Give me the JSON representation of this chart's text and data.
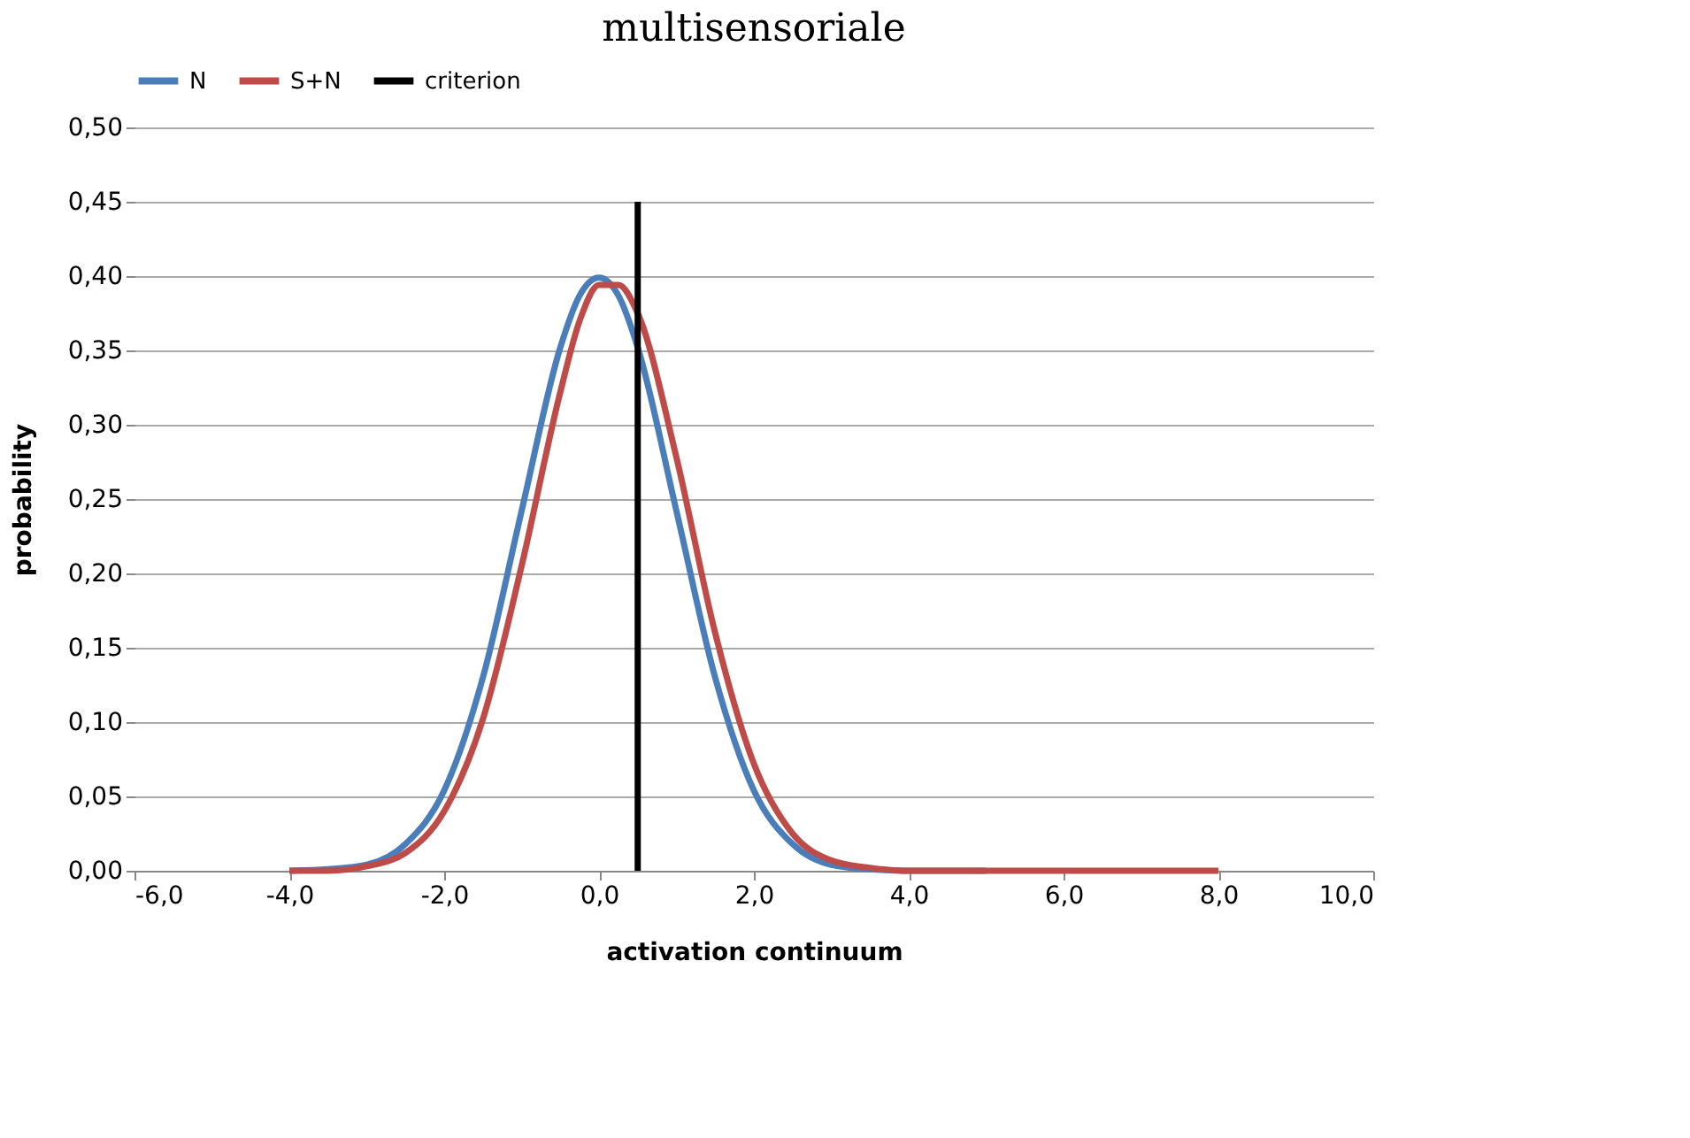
{
  "chart_data": {
    "type": "line",
    "title": "multisensoriale",
    "xlabel": "activation continuum",
    "ylabel": "probability",
    "x": [
      -4,
      -3.5,
      -3,
      -2.5,
      -2,
      -1.5,
      -1,
      -0.5,
      -0.25,
      0,
      0.25,
      0.5,
      1,
      1.5,
      2,
      2.5,
      3,
      3.5,
      4,
      5,
      6,
      7,
      8
    ],
    "series": [
      {
        "name": "N",
        "color": "#4a7ebb",
        "values": [
          0.0,
          0.001,
          0.004,
          0.018,
          0.054,
          0.13,
          0.242,
          0.352,
          0.387,
          0.399,
          0.387,
          0.352,
          0.242,
          0.13,
          0.054,
          0.018,
          0.004,
          0.001,
          0.0,
          0.0,
          null,
          null,
          null
        ]
      },
      {
        "name": "S+N",
        "color": "#be4b48",
        "values": [
          0.0,
          0.0,
          0.003,
          0.012,
          0.04,
          0.102,
          0.205,
          0.322,
          0.37,
          0.394,
          0.394,
          0.375,
          0.278,
          0.16,
          0.072,
          0.025,
          0.007,
          0.002,
          0.0,
          0.0,
          0.0,
          0.0,
          0.0
        ]
      },
      {
        "name": "criterion",
        "color": "#000000",
        "type": "line",
        "x": [
          0.5,
          0.5
        ],
        "values": [
          0,
          0.45
        ]
      }
    ],
    "xlim": [
      -6,
      10
    ],
    "ylim": [
      0,
      0.5
    ],
    "xticks": [
      {
        "value": -6,
        "label": "-6,0"
      },
      {
        "value": -4,
        "label": "-4,0"
      },
      {
        "value": -2,
        "label": "-2,0"
      },
      {
        "value": 0,
        "label": "0,0"
      },
      {
        "value": 2,
        "label": "2,0"
      },
      {
        "value": 4,
        "label": "4,0"
      },
      {
        "value": 6,
        "label": "6,0"
      },
      {
        "value": 8,
        "label": "8,0"
      },
      {
        "value": 10,
        "label": "10,0"
      }
    ],
    "yticks": [
      {
        "value": 0,
        "label": "0,00"
      },
      {
        "value": 0.05,
        "label": "0,05"
      },
      {
        "value": 0.1,
        "label": "0,10"
      },
      {
        "value": 0.15,
        "label": "0,15"
      },
      {
        "value": 0.2,
        "label": "0,20"
      },
      {
        "value": 0.25,
        "label": "0,25"
      },
      {
        "value": 0.3,
        "label": "0,30"
      },
      {
        "value": 0.35,
        "label": "0,35"
      },
      {
        "value": 0.4,
        "label": "0,40"
      },
      {
        "value": 0.45,
        "label": "0,45"
      },
      {
        "value": 0.5,
        "label": "0,50"
      }
    ],
    "grid": "y",
    "legend": "top",
    "marker": "none",
    "line_style": "solid"
  }
}
